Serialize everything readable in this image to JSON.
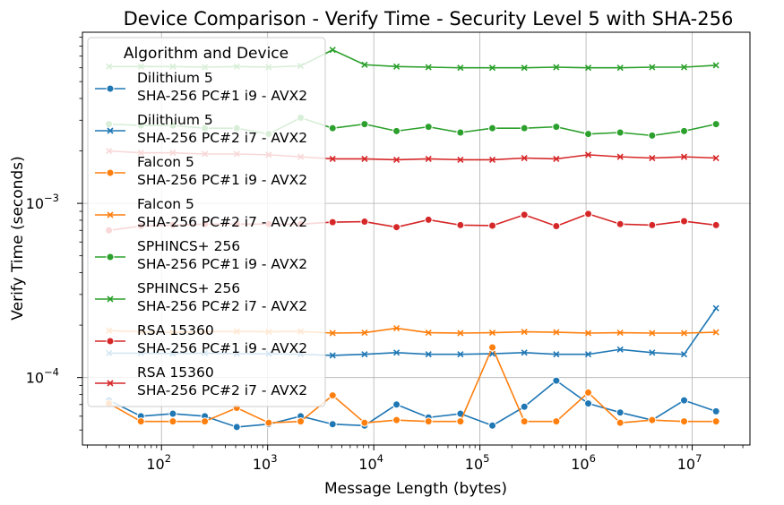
{
  "chart_data": {
    "type": "line",
    "title": "Device Comparison - Verify Time - Security Level 5 with SHA-256",
    "xlabel": "Message Length (bytes)",
    "ylabel": "Verify Time (seconds)",
    "xscale": "log",
    "yscale": "log",
    "xlim": [
      18,
      35000000
    ],
    "ylim": [
      4.1e-05,
      0.0096
    ],
    "grid": true,
    "legend": {
      "title": "Algorithm and Device",
      "placement": "upper-left"
    },
    "xticks": [
      {
        "value": 100,
        "base": "10",
        "exp": "2"
      },
      {
        "value": 1000,
        "base": "10",
        "exp": "3"
      },
      {
        "value": 10000,
        "base": "10",
        "exp": "4"
      },
      {
        "value": 100000,
        "base": "10",
        "exp": "5"
      },
      {
        "value": 1000000,
        "base": "10",
        "exp": "6"
      },
      {
        "value": 10000000,
        "base": "10",
        "exp": "7"
      }
    ],
    "yticks": [
      {
        "value": 0.0001,
        "base": "10",
        "exp": "−4"
      },
      {
        "value": 0.001,
        "base": "10",
        "exp": "−3"
      }
    ],
    "x": [
      32,
      64,
      128,
      256,
      512,
      1024,
      2048,
      4096,
      8192,
      16384,
      32768,
      65536,
      131072,
      262144,
      524288,
      1048576,
      2097152,
      4194304,
      8388608,
      16777216
    ],
    "series": [
      {
        "name": "Dilithium 5",
        "device": "SHA-256 PC#1 i9 - AVX2",
        "color": "#1f77b4",
        "marker": "circle",
        "values": [
          7.4e-05,
          6e-05,
          6.2e-05,
          6e-05,
          5.2e-05,
          5.4e-05,
          6e-05,
          5.4e-05,
          5.3e-05,
          7e-05,
          5.9e-05,
          6.2e-05,
          5.3e-05,
          6.8e-05,
          9.6e-05,
          7.1e-05,
          6.3e-05,
          5.7e-05,
          7.4e-05,
          6.4e-05
        ]
      },
      {
        "name": "Dilithium 5",
        "device": "SHA-256 PC#2 i7 - AVX2",
        "color": "#1f77b4",
        "marker": "x",
        "values": [
          0.000138,
          0.000138,
          0.000137,
          0.000138,
          0.000137,
          0.000137,
          0.000136,
          0.000134,
          0.000136,
          0.000139,
          0.000136,
          0.000136,
          0.000137,
          0.000139,
          0.000136,
          0.000136,
          0.000145,
          0.000139,
          0.000136,
          0.00025
        ]
      },
      {
        "name": "Falcon 5",
        "device": "SHA-256 PC#1 i9 - AVX2",
        "color": "#ff7f0e",
        "marker": "circle",
        "values": [
          7.1e-05,
          5.6e-05,
          5.6e-05,
          5.6e-05,
          6.7e-05,
          5.5e-05,
          5.6e-05,
          7.9e-05,
          5.5e-05,
          5.7e-05,
          5.6e-05,
          5.6e-05,
          0.000149,
          5.6e-05,
          5.6e-05,
          8.2e-05,
          5.5e-05,
          5.7e-05,
          5.6e-05,
          5.6e-05
        ]
      },
      {
        "name": "Falcon 5",
        "device": "SHA-256 PC#2 i7 - AVX2",
        "color": "#ff7f0e",
        "marker": "x",
        "values": [
          0.000186,
          0.000183,
          0.000182,
          0.000183,
          0.000184,
          0.000183,
          0.000184,
          0.00018,
          0.000181,
          0.000192,
          0.000181,
          0.00018,
          0.000181,
          0.000183,
          0.000182,
          0.00018,
          0.000181,
          0.00018,
          0.00018,
          0.000182
        ]
      },
      {
        "name": "SPHINCS+ 256",
        "device": "SHA-256 PC#1 i9 - AVX2",
        "color": "#2ca02c",
        "marker": "circle",
        "values": [
          0.00285,
          0.0028,
          0.0028,
          0.0027,
          0.0027,
          0.0025,
          0.0031,
          0.0027,
          0.00285,
          0.0026,
          0.00275,
          0.00255,
          0.0027,
          0.0027,
          0.00275,
          0.0025,
          0.00255,
          0.00245,
          0.0026,
          0.00285
        ]
      },
      {
        "name": "SPHINCS+ 256",
        "device": "SHA-256 PC#2 i7 - AVX2",
        "color": "#2ca02c",
        "marker": "x",
        "values": [
          0.0061,
          0.0061,
          0.0061,
          0.00605,
          0.0061,
          0.00605,
          0.00615,
          0.0076,
          0.00625,
          0.0061,
          0.00605,
          0.006,
          0.006,
          0.006,
          0.00605,
          0.006,
          0.006,
          0.00605,
          0.00605,
          0.0062
        ]
      },
      {
        "name": "RSA 15360",
        "device": "SHA-256 PC#1 i9 - AVX2",
        "color": "#d62728",
        "marker": "circle",
        "values": [
          0.0007,
          0.00074,
          0.00075,
          0.00076,
          0.00076,
          0.00076,
          0.00076,
          0.00078,
          0.000785,
          0.00073,
          0.000805,
          0.00075,
          0.000745,
          0.00086,
          0.00074,
          0.00087,
          0.00076,
          0.00075,
          0.00079,
          0.00075
        ]
      },
      {
        "name": "RSA 15360",
        "device": "SHA-256 PC#2 i7 - AVX2",
        "color": "#d62728",
        "marker": "x",
        "values": [
          0.002,
          0.00195,
          0.00195,
          0.00192,
          0.00192,
          0.0019,
          0.00185,
          0.0018,
          0.0018,
          0.00178,
          0.0018,
          0.00178,
          0.00178,
          0.00182,
          0.0018,
          0.0019,
          0.00185,
          0.00182,
          0.00185,
          0.00182
        ]
      }
    ]
  }
}
